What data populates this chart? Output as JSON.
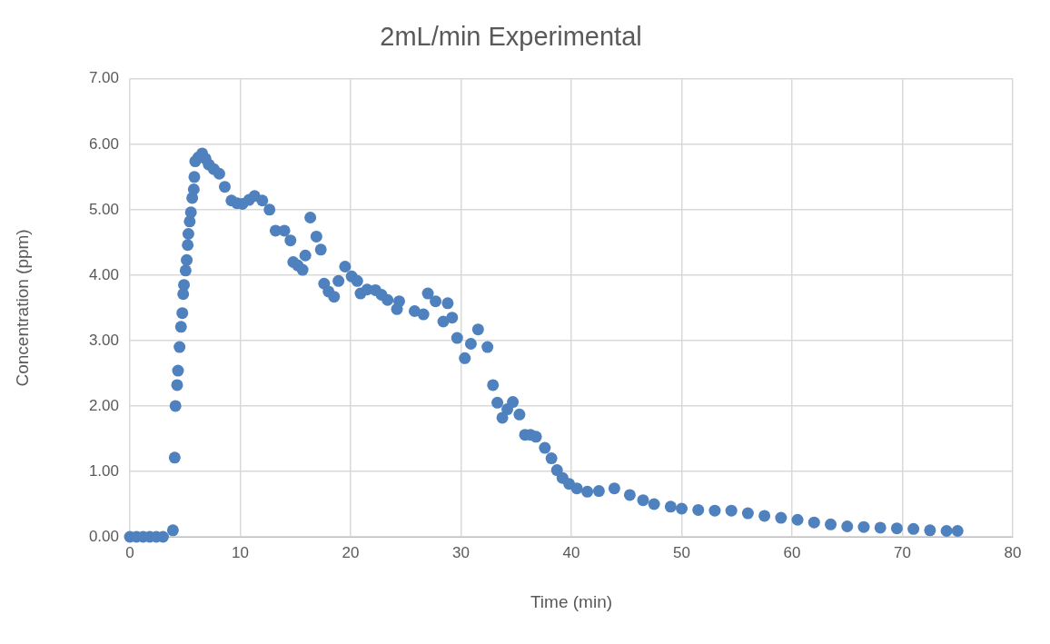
{
  "chart_data": {
    "type": "scatter",
    "title": "2mL/min Experimental",
    "xlabel": "Time (min)",
    "ylabel": "Concentration (ppm)",
    "xlim": [
      0,
      80
    ],
    "xticks": [
      0,
      10,
      20,
      30,
      40,
      50,
      60,
      70,
      80
    ],
    "ylim": [
      0,
      7
    ],
    "yticks": [
      {
        "value": 0,
        "label": "0.00"
      },
      {
        "value": 1,
        "label": "1.00"
      },
      {
        "value": 2,
        "label": "2.00"
      },
      {
        "value": 3,
        "label": "3.00"
      },
      {
        "value": 4,
        "label": "4.00"
      },
      {
        "value": 5,
        "label": "5.00"
      },
      {
        "value": 6,
        "label": "6.00"
      },
      {
        "value": 7,
        "label": "7.00"
      }
    ],
    "grid": true,
    "legend": false,
    "marker": "circle",
    "series": [
      {
        "color": "#4e81bd",
        "x": [
          0,
          0.6,
          1.2,
          1.8,
          2.4,
          3,
          3.9,
          4.06,
          4.13,
          4.28,
          4.36,
          4.5,
          4.63,
          4.75,
          4.83,
          4.9,
          5.05,
          5.15,
          5.24,
          5.3,
          5.42,
          5.53,
          5.65,
          5.79,
          5.84,
          5.92,
          6.2,
          6.55,
          6.85,
          7.15,
          7.6,
          8.1,
          8.6,
          9.2,
          9.7,
          10.2,
          10.8,
          11.3,
          12,
          12.65,
          13.2,
          14,
          14.55,
          14.8,
          15.2,
          15.65,
          15.9,
          16.35,
          16.9,
          17.3,
          17.6,
          18,
          18.5,
          18.9,
          19.5,
          20.1,
          20.6,
          20.9,
          21.5,
          22.25,
          22.8,
          23.35,
          24.2,
          24.4,
          25.8,
          26.6,
          27,
          27.7,
          28.4,
          28.8,
          29.2,
          29.65,
          30.35,
          30.9,
          31.55,
          32.4,
          32.9,
          33.3,
          33.75,
          34.2,
          34.7,
          35.3,
          35.8,
          36.3,
          36.8,
          37.6,
          38.2,
          38.7,
          39.2,
          39.8,
          40.5,
          41.45,
          42.5,
          43.9,
          45.3,
          46.5,
          47.5,
          49,
          50,
          51.5,
          53,
          54.5,
          56,
          57.5,
          59,
          60.5,
          62,
          63.5,
          65,
          66.5,
          68,
          69.5,
          71,
          72.5,
          74,
          75
        ],
        "values": [
          0,
          0,
          0,
          0,
          0,
          0,
          0.1,
          1.21,
          2.0,
          2.32,
          2.54,
          2.9,
          3.21,
          3.42,
          3.71,
          3.85,
          4.07,
          4.23,
          4.46,
          4.63,
          4.82,
          4.96,
          5.18,
          5.31,
          5.5,
          5.74,
          5.8,
          5.86,
          5.78,
          5.69,
          5.62,
          5.55,
          5.35,
          5.14,
          5.1,
          5.09,
          5.15,
          5.21,
          5.14,
          5.0,
          4.68,
          4.68,
          4.53,
          4.2,
          4.15,
          4.08,
          4.3,
          4.88,
          4.59,
          4.39,
          3.87,
          3.75,
          3.67,
          3.91,
          4.13,
          3.98,
          3.91,
          3.72,
          3.78,
          3.77,
          3.7,
          3.62,
          3.48,
          3.6,
          3.45,
          3.4,
          3.72,
          3.6,
          3.29,
          3.57,
          3.35,
          3.04,
          2.73,
          2.95,
          3.17,
          2.9,
          2.32,
          2.05,
          1.82,
          1.95,
          2.06,
          1.87,
          1.56,
          1.56,
          1.53,
          1.36,
          1.2,
          1.02,
          0.9,
          0.81,
          0.74,
          0.69,
          0.7,
          0.74,
          0.64,
          0.56,
          0.5,
          0.46,
          0.43,
          0.41,
          0.4,
          0.4,
          0.36,
          0.32,
          0.29,
          0.26,
          0.22,
          0.19,
          0.16,
          0.15,
          0.14,
          0.13,
          0.12,
          0.1,
          0.09,
          0.09
        ]
      }
    ]
  }
}
